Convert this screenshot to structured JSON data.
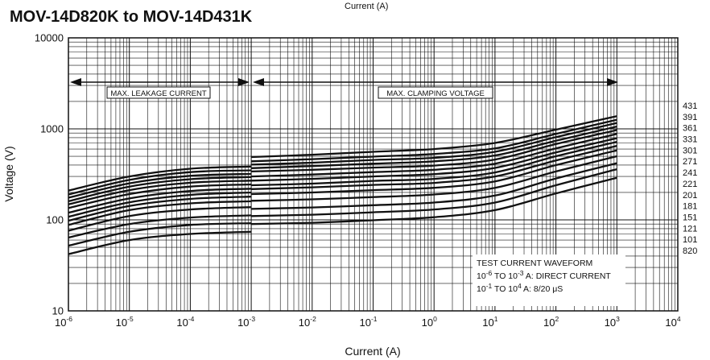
{
  "title": "MOV-14D820K to MOV-14D431K",
  "top_note": "Current (A)",
  "chart_data": {
    "type": "line",
    "xscale": "log",
    "yscale": "log",
    "xlim": [
      1e-06,
      10000
    ],
    "ylim": [
      10,
      10000
    ],
    "xlabel": "Current (A)",
    "ylabel": "Voltage (V)",
    "x_ticks": [
      {
        "base": "10",
        "exp": "-6"
      },
      {
        "base": "10",
        "exp": "-5"
      },
      {
        "base": "10",
        "exp": "-4"
      },
      {
        "base": "10",
        "exp": "-3"
      },
      {
        "base": "10",
        "exp": "-2"
      },
      {
        "base": "10",
        "exp": "-1"
      },
      {
        "base": "10",
        "exp": "0"
      },
      {
        "base": "10",
        "exp": "1"
      },
      {
        "base": "10",
        "exp": "2"
      },
      {
        "base": "10",
        "exp": "3"
      },
      {
        "base": "10",
        "exp": "4"
      }
    ],
    "y_ticks": [
      "10",
      "100",
      "1000",
      "10000"
    ],
    "grid": true,
    "leakage_x": [
      1e-06,
      1e-05,
      0.0001,
      0.001
    ],
    "clamp_x": [
      0.001,
      0.01,
      0.1,
      1,
      10,
      100,
      1000
    ],
    "series": [
      {
        "name": "431",
        "leakage": [
          210,
          300,
          365,
          385
        ],
        "clamp": [
          490,
          520,
          560,
          600,
          700,
          980,
          1380
        ]
      },
      {
        "name": "391",
        "leakage": [
          190,
          275,
          335,
          350
        ],
        "clamp": [
          440,
          465,
          495,
          530,
          610,
          880,
          1260
        ]
      },
      {
        "name": "361",
        "leakage": [
          175,
          252,
          305,
          320
        ],
        "clamp": [
          405,
          425,
          455,
          480,
          560,
          810,
          1160
        ]
      },
      {
        "name": "331",
        "leakage": [
          160,
          232,
          280,
          295
        ],
        "clamp": [
          370,
          390,
          415,
          440,
          510,
          740,
          1060
        ]
      },
      {
        "name": "301",
        "leakage": [
          148,
          212,
          256,
          270
        ],
        "clamp": [
          340,
          355,
          375,
          395,
          460,
          680,
          970
        ]
      },
      {
        "name": "271",
        "leakage": [
          135,
          192,
          232,
          245
        ],
        "clamp": [
          300,
          315,
          335,
          355,
          415,
          610,
          880
        ]
      },
      {
        "name": "241",
        "leakage": [
          120,
          172,
          208,
          220
        ],
        "clamp": [
          270,
          282,
          300,
          318,
          372,
          550,
          790
        ]
      },
      {
        "name": "221",
        "leakage": [
          108,
          156,
          188,
          200
        ],
        "clamp": [
          240,
          250,
          268,
          282,
          332,
          500,
          720
        ]
      },
      {
        "name": "201",
        "leakage": [
          98,
          142,
          170,
          180
        ],
        "clamp": [
          218,
          228,
          242,
          255,
          300,
          450,
          650
        ]
      },
      {
        "name": "181",
        "leakage": [
          88,
          128,
          152,
          160
        ],
        "clamp": [
          192,
          200,
          212,
          225,
          265,
          400,
          580
        ]
      },
      {
        "name": "151",
        "leakage": [
          76,
          110,
          130,
          138
        ],
        "clamp": [
          162,
          168,
          178,
          190,
          225,
          340,
          500
        ]
      },
      {
        "name": "121",
        "leakage": [
          64,
          90,
          106,
          112
        ],
        "clamp": [
          132,
          137,
          145,
          155,
          185,
          285,
          420
        ]
      },
      {
        "name": "101",
        "leakage": [
          52,
          74,
          88,
          92
        ],
        "clamp": [
          110,
          114,
          121,
          130,
          155,
          240,
          360
        ]
      },
      {
        "name": "820",
        "leakage": [
          42,
          60,
          70,
          74
        ],
        "clamp": [
          90,
          93,
          99,
          107,
          128,
          195,
          290
        ]
      }
    ],
    "annotations": {
      "leakage_band": "MAX. LEAKAGE CURRENT",
      "clamping_band": "MAX. CLAMPING VOLTAGE",
      "waveform_title": "TEST CURRENT WAVEFORM",
      "waveform_dc": {
        "a": "10",
        "a_exp": "-6",
        "mid": " TO 10",
        "b_exp": "-3",
        "rest": " A: DIRECT CURRENT"
      },
      "waveform_pulse": {
        "a": "10",
        "a_exp": "-1",
        "mid": " TO 10",
        "b_exp": "4",
        "rest": " A: 8/20 μS"
      }
    }
  }
}
